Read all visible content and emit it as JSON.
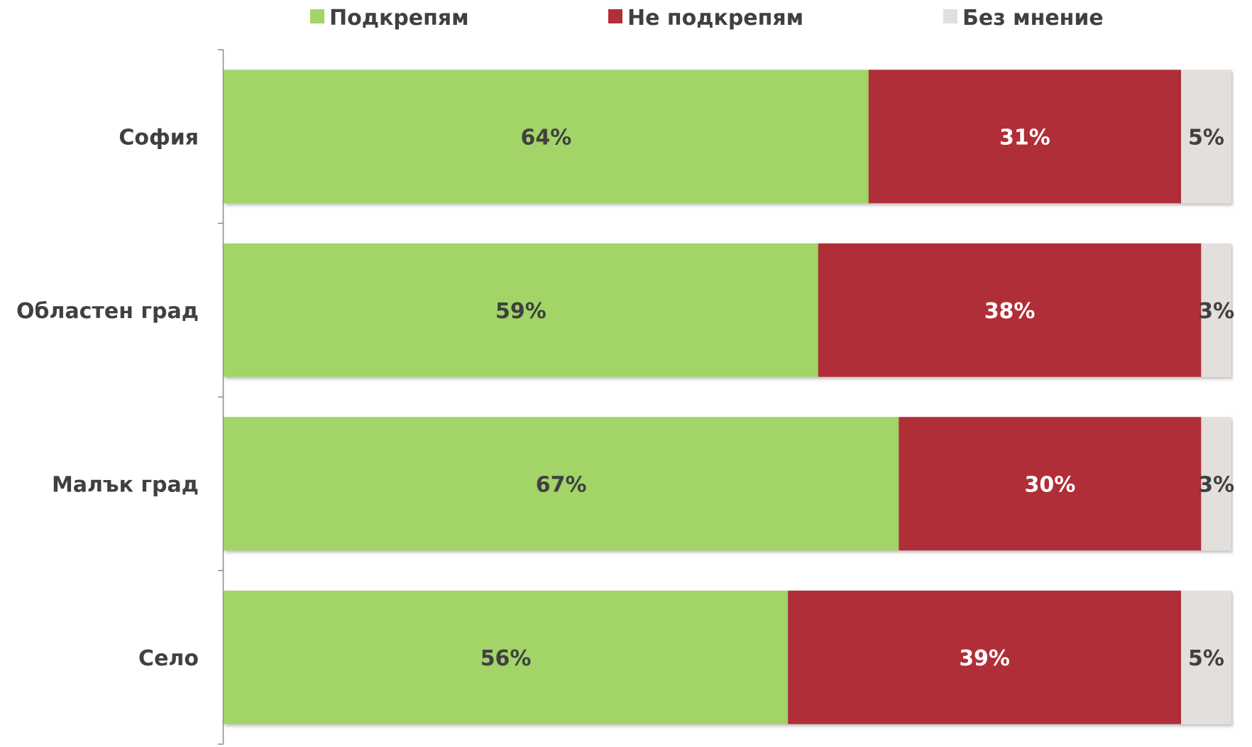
{
  "chart_data": {
    "type": "bar",
    "orientation": "horizontal",
    "stacked": true,
    "normalized": true,
    "categories": [
      "София",
      "Областен град",
      "Малък град",
      "Село"
    ],
    "series": [
      {
        "name": "Подкрепям",
        "values": [
          64,
          59,
          67,
          56
        ],
        "labels": [
          "64%",
          "59%",
          "67%",
          "56%"
        ],
        "color": "#a2d468",
        "label_color": "#404040"
      },
      {
        "name": "Не подкрепям",
        "values": [
          31,
          38,
          30,
          39
        ],
        "labels": [
          "31%",
          "38%",
          "30%",
          "39%"
        ],
        "color": "#b02f38",
        "label_color": "#ffffff"
      },
      {
        "name": "Без мнение",
        "values": [
          5,
          3,
          3,
          5
        ],
        "labels": [
          "5%",
          "3%",
          "3%",
          "5%"
        ],
        "color": "#e2dfdc",
        "label_color": "#404040"
      }
    ],
    "xlim": [
      0,
      100
    ],
    "grid": false,
    "legend_position": "top"
  }
}
